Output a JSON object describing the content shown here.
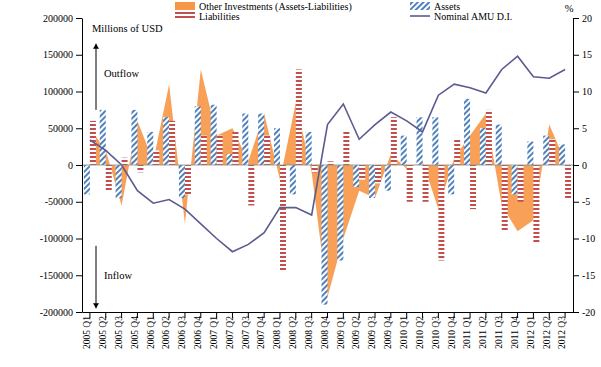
{
  "chart_data": {
    "type": "bar",
    "ylabel": "Millions of USD",
    "y2label": "%",
    "annotations": [
      "Outflow",
      "Inflow"
    ],
    "legend": "top",
    "categories": [
      "2005 Q1",
      "2005 Q2",
      "2005 Q3",
      "2005 Q4",
      "2006 Q1",
      "2006 Q2",
      "2006 Q3",
      "2006 Q4",
      "2007 Q1",
      "2007 Q2",
      "2007 Q3",
      "2007 Q4",
      "2008 Q1",
      "2008 Q2",
      "2008 Q3",
      "2008 Q4",
      "2009 Q1",
      "2009 Q2",
      "2009 Q3",
      "2009 Q4",
      "2010 Q1",
      "2010 Q2",
      "2010 Q3",
      "2010 Q4",
      "2011 Q1",
      "2011 Q2",
      "2011 Q3",
      "2011 Q4",
      "2012 Q1",
      "2012 Q2",
      "2012 Q3"
    ],
    "ylim": [
      -200000,
      200000
    ],
    "yticks": [
      -200000,
      -150000,
      -100000,
      -50000,
      0,
      50000,
      100000,
      150000,
      200000
    ],
    "y2lim": [
      -20,
      20
    ],
    "y2ticks": [
      -20,
      -15,
      -10,
      -5,
      0,
      5,
      10,
      15,
      20
    ],
    "series": [
      {
        "name": "Other Investments (Assets-Liabilities)",
        "type": "area",
        "color": "#f79646",
        "values": [
          50000,
          20000,
          -55000,
          60000,
          5000,
          110000,
          -80000,
          130000,
          40000,
          50000,
          5000,
          70000,
          -20000,
          85000,
          -10000,
          -180000,
          -100000,
          -35000,
          -45000,
          15000,
          -5000,
          5000,
          -60000,
          10000,
          40000,
          70000,
          -55000,
          -90000,
          -75000,
          55000,
          5000
        ]
      },
      {
        "name": "Assets",
        "type": "bar",
        "color": "#4f81bd",
        "values": [
          -40000,
          75000,
          -45000,
          75000,
          45000,
          65000,
          -45000,
          80000,
          82000,
          15000,
          70000,
          70000,
          50000,
          -40000,
          45000,
          -190000,
          -130000,
          -30000,
          -45000,
          -35000,
          40000,
          65000,
          65000,
          -40000,
          90000,
          50000,
          55000,
          -40000,
          32000,
          40000,
          28000
        ]
      },
      {
        "name": "Liabilities",
        "type": "bar",
        "color": "#c0504d",
        "values": [
          60000,
          -35000,
          10000,
          -10000,
          20000,
          60000,
          -40000,
          40000,
          40000,
          45000,
          -55000,
          40000,
          -145000,
          130000,
          -10000,
          5000,
          45000,
          -20000,
          -25000,
          65000,
          -50000,
          -50000,
          -130000,
          35000,
          -60000,
          75000,
          -90000,
          -50000,
          -105000,
          35000,
          -45000
        ]
      },
      {
        "name": "Nominal AMU D.I.",
        "type": "line",
        "axis": "y2",
        "color": "#5b5b8f",
        "values": [
          3.4,
          2,
          0,
          -3.5,
          -5.2,
          -4.7,
          -6,
          -8,
          -10,
          -11.8,
          -10.8,
          -9.2,
          -5.8,
          -5.8,
          -6.8,
          5.5,
          8.3,
          3.5,
          5.5,
          7.2,
          6,
          4.5,
          9.5,
          11,
          10.5,
          9.8,
          13,
          14.8,
          12,
          11.8,
          13
        ]
      }
    ]
  }
}
